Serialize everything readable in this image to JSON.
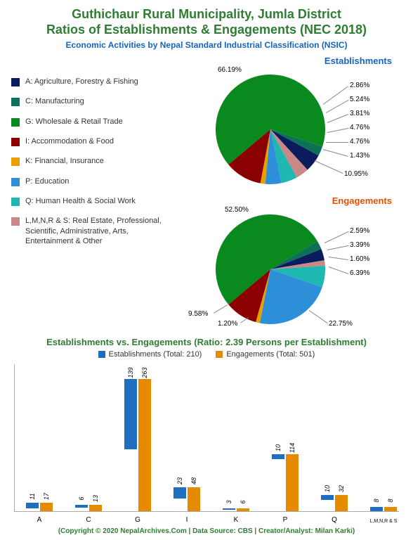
{
  "title_line1": "Guthichaur Rural Municipality, Jumla District",
  "title_line2": "Ratios of Establishments & Engagements (NEC 2018)",
  "subtitle": "Economic Activities by Nepal Standard Industrial Classification (NSIC)",
  "colors": {
    "title": "#2e7d32",
    "subtitle": "#1565c0",
    "establishments_label": "#1565c0",
    "engagements_label": "#e65100",
    "bar_establishments": "#1e6fc0",
    "bar_engagements": "#e68a00",
    "background": "#ffffff"
  },
  "legend": [
    {
      "code": "A",
      "label": "A: Agriculture, Forestry & Fishing",
      "color": "#0a1c5c"
    },
    {
      "code": "C",
      "label": "C: Manufacturing",
      "color": "#0d7058"
    },
    {
      "code": "G",
      "label": "G: Wholesale & Retail Trade",
      "color": "#0a8a1e"
    },
    {
      "code": "I",
      "label": "I: Accommodation & Food",
      "color": "#8b0000"
    },
    {
      "code": "K",
      "label": "K: Financial, Insurance",
      "color": "#e8a000"
    },
    {
      "code": "P",
      "label": "P: Education",
      "color": "#2d8fd8"
    },
    {
      "code": "Q",
      "label": "Q: Human Health & Social Work",
      "color": "#1fb8b0"
    },
    {
      "code": "L",
      "label": "L,M,N,R & S: Real Estate, Professional, Scientific, Administrative, Arts, Entertainment & Other",
      "color": "#c98888"
    }
  ],
  "pie_establishments": {
    "title": "Establishments",
    "title_color": "#1565c0",
    "slices": [
      {
        "label": "66.19%",
        "value": 66.19,
        "color": "#0a8a1e"
      },
      {
        "label": "2.86%",
        "value": 2.86,
        "color": "#0d7058"
      },
      {
        "label": "5.24%",
        "value": 5.24,
        "color": "#0a1c5c"
      },
      {
        "label": "3.81%",
        "value": 3.81,
        "color": "#c98888"
      },
      {
        "label": "4.76%",
        "value": 4.76,
        "color": "#1fb8b0"
      },
      {
        "label": "4.76%",
        "value": 4.76,
        "color": "#2d8fd8"
      },
      {
        "label": "1.43%",
        "value": 1.43,
        "color": "#e8a000"
      },
      {
        "label": "10.95%",
        "value": 10.95,
        "color": "#8b0000"
      }
    ]
  },
  "pie_engagements": {
    "title": "Engagements",
    "title_color": "#e65100",
    "slices": [
      {
        "label": "52.50%",
        "value": 52.5,
        "color": "#0a8a1e"
      },
      {
        "label": "2.59%",
        "value": 2.59,
        "color": "#0d7058"
      },
      {
        "label": "3.39%",
        "value": 3.39,
        "color": "#0a1c5c"
      },
      {
        "label": "1.60%",
        "value": 1.6,
        "color": "#c98888"
      },
      {
        "label": "6.39%",
        "value": 6.39,
        "color": "#1fb8b0"
      },
      {
        "label": "22.75%",
        "value": 22.75,
        "color": "#2d8fd8"
      },
      {
        "label": "1.20%",
        "value": 1.2,
        "color": "#e8a000"
      },
      {
        "label": "9.58%",
        "value": 9.58,
        "color": "#8b0000"
      }
    ]
  },
  "bar_chart": {
    "title": "Establishments vs. Engagements (Ratio: 2.39 Persons per Establishment)",
    "title_color": "#2e7d32",
    "series": [
      {
        "name": "Establishments (Total: 210)",
        "color": "#1e6fc0"
      },
      {
        "name": "Engagements (Total: 501)",
        "color": "#e68a00"
      }
    ],
    "ymax": 280,
    "categories": [
      "A",
      "C",
      "G",
      "I",
      "K",
      "P",
      "Q",
      "L,M,N,R & S"
    ],
    "data": [
      {
        "cat": "A",
        "est": 11,
        "eng": 17
      },
      {
        "cat": "C",
        "est": 6,
        "eng": 13
      },
      {
        "cat": "G",
        "est": 139,
        "eng": 263
      },
      {
        "cat": "I",
        "est": 23,
        "eng": 48
      },
      {
        "cat": "K",
        "est": 3,
        "eng": 6
      },
      {
        "cat": "P",
        "est": 10,
        "eng": 114
      },
      {
        "cat": "Q",
        "est": 10,
        "eng": 32
      },
      {
        "cat": "L,M,N,R & S",
        "est": 8,
        "eng": 8
      }
    ]
  },
  "footer": "(Copyright © 2020 NepalArchives.Com | Data Source: CBS | Creator/Analyst: Milan Karki)"
}
